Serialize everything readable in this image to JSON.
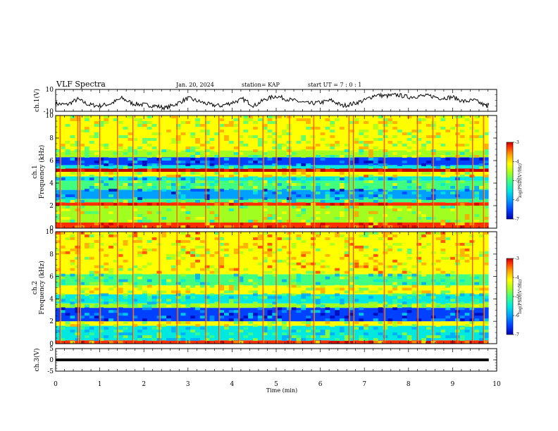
{
  "header": {
    "title": "VLF Spectra",
    "date": "Jan. 20, 2024",
    "station": "station= KAP",
    "start_ut": "start UT =  7 : 0  : 1"
  },
  "chart_data": [
    {
      "type": "line",
      "panel": "ch1-waveform",
      "ylabel": "ch.1(V)",
      "yticks": [
        "10",
        "-10"
      ],
      "ylim": [
        -10,
        10
      ],
      "x": [
        0,
        0.25,
        0.5,
        0.75,
        1.0,
        1.25,
        1.5,
        1.75,
        2.0,
        2.25,
        2.5,
        2.75,
        3.0,
        3.25,
        3.5,
        3.75,
        4.0,
        4.25,
        4.5,
        4.75,
        5.0,
        5.25,
        5.5,
        5.75,
        6.0,
        6.25,
        6.5,
        6.75,
        7.0,
        7.25,
        7.5,
        7.75,
        8.0,
        8.25,
        8.5,
        8.75,
        9.0,
        9.25,
        9.5,
        9.75,
        9.82
      ],
      "values": [
        -3,
        -4,
        1,
        -4,
        -5,
        -3,
        2,
        -3,
        -4,
        -5,
        -7,
        -3,
        2,
        -1,
        -4,
        -5,
        -2,
        1,
        -5,
        1,
        4,
        1,
        -1,
        -3,
        -2,
        0,
        -5,
        -3,
        0,
        5,
        4,
        5,
        3,
        4,
        4,
        2,
        3,
        -1,
        0,
        -5,
        -4
      ],
      "grid": false
    },
    {
      "type": "heatmap",
      "panel": "ch1-spectrogram",
      "ylabel": "ch.1\nFrequency (kHz)",
      "yticks": [
        "0",
        "2",
        "4",
        "6",
        "8",
        "10"
      ],
      "ylim": [
        0,
        10
      ],
      "colorbar": {
        "ticks": [
          "-3",
          "-4",
          "-5",
          "-6",
          "-7"
        ],
        "label": "log(PSD)(V²/Hz)",
        "range": [
          -7,
          -3
        ]
      },
      "bands": [
        {
          "from": 0.0,
          "to": 0.5,
          "level": -3.8
        },
        {
          "from": 0.5,
          "to": 2.0,
          "level": -4.8
        },
        {
          "from": 2.0,
          "to": 2.3,
          "level": -3.5
        },
        {
          "from": 2.3,
          "to": 2.6,
          "level": -5.2
        },
        {
          "from": 2.6,
          "to": 3.4,
          "level": -6.0
        },
        {
          "from": 3.4,
          "to": 4.2,
          "level": -5.2
        },
        {
          "from": 4.2,
          "to": 4.6,
          "level": -5.8
        },
        {
          "from": 4.6,
          "to": 5.0,
          "level": -4.4
        },
        {
          "from": 5.0,
          "to": 5.3,
          "level": -3.3
        },
        {
          "from": 5.3,
          "to": 5.6,
          "level": -5.5
        },
        {
          "from": 5.6,
          "to": 6.3,
          "level": -6.3
        },
        {
          "from": 6.3,
          "to": 6.9,
          "level": -4.8
        },
        {
          "from": 6.9,
          "to": 10.0,
          "level": -4.6
        }
      ],
      "impulses_min": [
        0.1,
        0.5,
        0.55,
        1.0,
        1.4,
        1.75,
        2.35,
        2.75,
        3.4,
        3.7,
        4.15,
        4.7,
        5.0,
        5.3,
        5.85,
        6.65,
        6.75,
        7.45,
        8.2,
        8.55,
        9.1,
        9.45,
        9.7
      ]
    },
    {
      "type": "heatmap",
      "panel": "ch2-spectrogram",
      "ylabel": "ch.2\nFrequency (kHz)",
      "yticks": [
        "0",
        "2",
        "4",
        "6",
        "8",
        "10"
      ],
      "ylim": [
        0,
        10
      ],
      "colorbar": {
        "ticks": [
          "-3",
          "-4",
          "-5",
          "-6",
          "-7"
        ],
        "label": "log(PSD)(V²/Hz)",
        "range": [
          -7,
          -3
        ]
      },
      "bands": [
        {
          "from": 0.0,
          "to": 0.3,
          "level": -3.8
        },
        {
          "from": 0.3,
          "to": 1.6,
          "level": -5.4
        },
        {
          "from": 1.6,
          "to": 2.0,
          "level": -4.6
        },
        {
          "from": 2.0,
          "to": 3.2,
          "level": -6.2
        },
        {
          "from": 3.2,
          "to": 3.6,
          "level": -5.0
        },
        {
          "from": 3.6,
          "to": 4.4,
          "level": -5.4
        },
        {
          "from": 4.4,
          "to": 5.2,
          "level": -4.6
        },
        {
          "from": 5.2,
          "to": 6.2,
          "level": -5.3
        },
        {
          "from": 6.2,
          "to": 10.0,
          "level": -4.4
        }
      ],
      "impulses_min": [
        0.1,
        0.5,
        0.55,
        1.0,
        1.4,
        1.75,
        2.35,
        2.75,
        3.4,
        3.7,
        4.15,
        4.7,
        5.0,
        5.3,
        5.85,
        6.65,
        6.75,
        7.45,
        8.2,
        8.55,
        9.1,
        9.45,
        9.7
      ]
    },
    {
      "type": "area",
      "panel": "ch3-waveform",
      "ylabel": "ch.3(V)",
      "yticks": [
        "5",
        "0",
        "-5"
      ],
      "ylim": [
        -5,
        5
      ],
      "x": [
        0,
        9.82
      ],
      "values": [
        0,
        0
      ],
      "band": [
        -0.6,
        0.6
      ]
    }
  ],
  "xaxis": {
    "label": "Time (min)",
    "ticks": [
      "0",
      "1",
      "2",
      "3",
      "4",
      "5",
      "6",
      "7",
      "8",
      "9",
      "10"
    ],
    "range": [
      0,
      10
    ]
  },
  "colors": {
    "colormap": [
      "#0000b0",
      "#0040ff",
      "#00a0ff",
      "#00e8e0",
      "#40ff80",
      "#a0ff20",
      "#ffff00",
      "#ffa000",
      "#ff3000",
      "#c00000"
    ]
  }
}
